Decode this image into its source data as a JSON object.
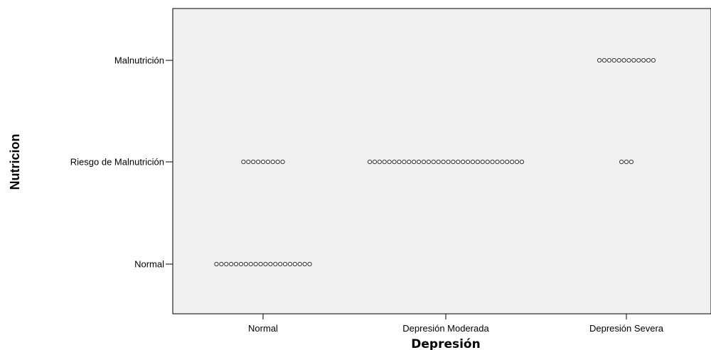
{
  "chart_data": {
    "type": "scatter",
    "subtype": "dot-plot",
    "xlabel": "Depresión",
    "ylabel": "Nutricion",
    "x_categories": [
      "Normal",
      "Depresión Moderada",
      "Depresión Severa"
    ],
    "y_categories": [
      "Normal",
      "Riesgo de Malnutrición",
      "Malnutrición"
    ],
    "grid": false,
    "legend": "none",
    "colors": {
      "plot_background": "#f0f0f0",
      "marker_stroke": "#333333",
      "marker_fill": "#ffffff"
    },
    "groups": [
      {
        "x": "Normal",
        "y": "Riesgo de Malnutrición",
        "count": 9
      },
      {
        "x": "Normal",
        "y": "Normal",
        "count": 20
      },
      {
        "x": "Depresión Moderada",
        "y": "Riesgo de Malnutrición",
        "count": 32
      },
      {
        "x": "Depresión Severa",
        "y": "Malnutrición",
        "count": 12
      },
      {
        "x": "Depresión Severa",
        "y": "Riesgo de Malnutrición",
        "count": 3
      }
    ]
  }
}
